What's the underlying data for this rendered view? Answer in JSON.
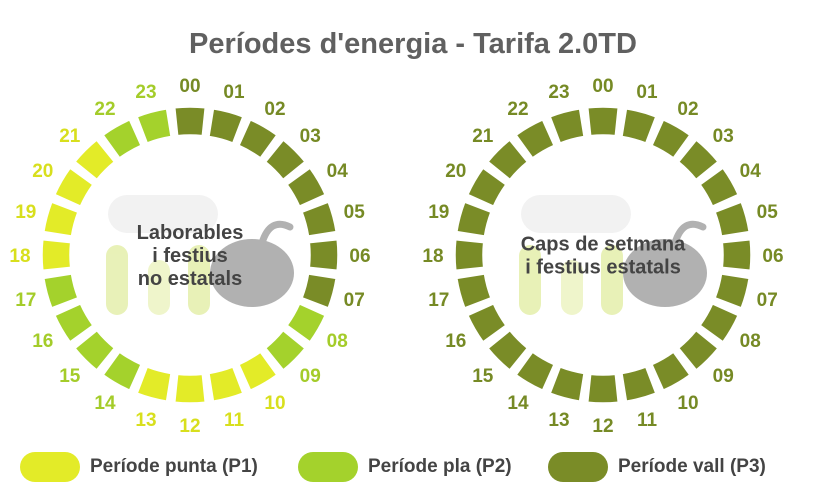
{
  "title": "Períodes d'energia - Tarifa 2.0TD",
  "colors": {
    "P1": "#e3eb28",
    "P2": "#a4d22c",
    "P3": "#7a8c27",
    "label_P1": "#d8df1d",
    "label_P2": "#a4cc2a",
    "label_P3": "#768a25"
  },
  "hours": [
    "00",
    "01",
    "02",
    "03",
    "04",
    "05",
    "06",
    "07",
    "08",
    "09",
    "10",
    "11",
    "12",
    "13",
    "14",
    "15",
    "16",
    "17",
    "18",
    "19",
    "20",
    "21",
    "22",
    "23"
  ],
  "clocks": [
    {
      "label_lines": [
        "Laborables",
        "i festius",
        "no estatals"
      ],
      "periods": [
        "P3",
        "P3",
        "P3",
        "P3",
        "P3",
        "P3",
        "P3",
        "P3",
        "P2",
        "P2",
        "P1",
        "P1",
        "P1",
        "P1",
        "P2",
        "P2",
        "P2",
        "P2",
        "P1",
        "P1",
        "P1",
        "P1",
        "P2",
        "P2"
      ]
    },
    {
      "label_lines": [
        "Caps de setmana",
        "i festius estatals"
      ],
      "periods": [
        "P3",
        "P3",
        "P3",
        "P3",
        "P3",
        "P3",
        "P3",
        "P3",
        "P3",
        "P3",
        "P3",
        "P3",
        "P3",
        "P3",
        "P3",
        "P3",
        "P3",
        "P3",
        "P3",
        "P3",
        "P3",
        "P3",
        "P3",
        "P3"
      ]
    }
  ],
  "legend": [
    {
      "period": "P1",
      "label": "Període punta (P1)"
    },
    {
      "period": "P2",
      "label": "Període pla (P2)"
    },
    {
      "period": "P3",
      "label": "Període vall (P3)"
    }
  ],
  "watermark_icon": "plug-logo-icon"
}
